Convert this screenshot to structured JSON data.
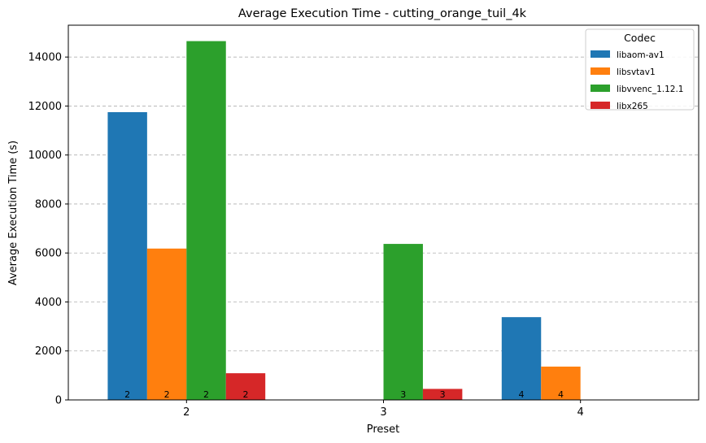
{
  "chart_data": {
    "type": "bar",
    "title": "Average Execution Time - cutting_orange_tuil_4k",
    "xlabel": "Preset",
    "ylabel": "Average Execution Time (s)",
    "categories": [
      "2",
      "3",
      "4"
    ],
    "ylim": [
      0,
      15300
    ],
    "yticks": [
      0,
      2000,
      4000,
      6000,
      8000,
      10000,
      12000,
      14000
    ],
    "grid": "y-dashed",
    "legend": {
      "title": "Codec",
      "placement": "top-right"
    },
    "series": [
      {
        "name": "libaom-av1",
        "color": "#1f77b4",
        "values": [
          11750,
          null,
          3380
        ],
        "bar_labels": [
          "2",
          null,
          "4"
        ]
      },
      {
        "name": "libsvtav1",
        "color": "#ff7f0e",
        "values": [
          6180,
          null,
          1360
        ],
        "bar_labels": [
          "2",
          null,
          "4"
        ]
      },
      {
        "name": "libvvenc_1.12.1",
        "color": "#2ca02c",
        "values": [
          14650,
          6370,
          null
        ],
        "bar_labels": [
          "2",
          "3",
          null
        ]
      },
      {
        "name": "libx265",
        "color": "#d62728",
        "values": [
          1090,
          450,
          null
        ],
        "bar_labels": [
          "2",
          "3",
          null
        ]
      }
    ]
  }
}
